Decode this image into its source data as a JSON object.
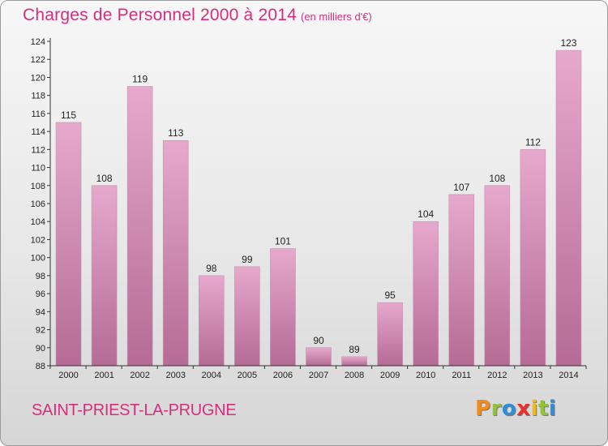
{
  "header": {
    "title": "Charges de Personnel 2000 à 2014",
    "subtitle": "(en milliers d'€)"
  },
  "footer": {
    "commune": "SAINT-PRIEST-LA-PRUGNE",
    "logo_text": "Proxiti",
    "logo_letters": [
      {
        "char": "P",
        "color": "#f28c1e"
      },
      {
        "char": "r",
        "color": "#8fc33b"
      },
      {
        "char": "o",
        "color": "#2f8ed6"
      },
      {
        "char": "x",
        "color": "#e9302a"
      },
      {
        "char": "i",
        "color": "#f2b81e"
      },
      {
        "char": "t",
        "color": "#8fc33b"
      },
      {
        "char": "i",
        "color": "#2f8ed6"
      }
    ]
  },
  "colors": {
    "bar_light": "#e6a9cc",
    "bar_dark": "#b56b95",
    "title": "#d3307c"
  },
  "chart_data": {
    "type": "bar",
    "title": "Charges de Personnel 2000 à 2014",
    "subtitle": "(en milliers d'€)",
    "categories": [
      "2000",
      "2001",
      "2002",
      "2003",
      "2004",
      "2005",
      "2006",
      "2007",
      "2008",
      "2009",
      "2010",
      "2011",
      "2012",
      "2013",
      "2014"
    ],
    "values": [
      115,
      108,
      119,
      113,
      98,
      99,
      101,
      90,
      89,
      95,
      104,
      107,
      108,
      112,
      123
    ],
    "ylim": [
      88,
      124
    ],
    "yticks": [
      88,
      90,
      92,
      94,
      96,
      98,
      100,
      102,
      104,
      106,
      108,
      110,
      112,
      114,
      116,
      118,
      120,
      122,
      124
    ],
    "grid": false,
    "legend": "none"
  }
}
